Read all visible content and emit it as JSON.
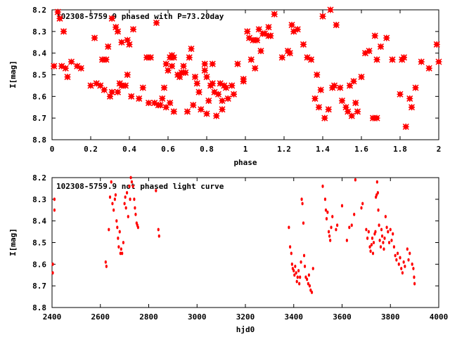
{
  "colors": {
    "points": "#ff0000",
    "axes": "#000000",
    "background": "#ffffff"
  },
  "chart_data": [
    {
      "type": "scatter",
      "title": "102308-5759.9 phased with P=73.20day",
      "xlabel": "phase",
      "ylabel": "I[mag]",
      "xlim": [
        0,
        2
      ],
      "ylim": [
        8.2,
        8.8
      ],
      "y_inverted": true,
      "marker": "star",
      "xticks": [
        "0",
        "0.2",
        "0.4",
        "0.6",
        "0.8",
        "1",
        "1.2",
        "1.4",
        "1.6",
        "1.8",
        "2"
      ],
      "yticks": [
        "8.2",
        "8.3",
        "8.4",
        "8.5",
        "8.6",
        "8.7",
        "8.8"
      ],
      "points": [
        [
          0.01,
          8.46
        ],
        [
          0.03,
          8.21
        ],
        [
          0.04,
          8.24
        ],
        [
          0.05,
          8.46
        ],
        [
          0.06,
          8.3
        ],
        [
          0.07,
          8.47
        ],
        [
          0.08,
          8.51
        ],
        [
          0.1,
          8.44
        ],
        [
          0.13,
          8.46
        ],
        [
          0.15,
          8.47
        ],
        [
          0.2,
          8.55
        ],
        [
          0.22,
          8.33
        ],
        [
          0.23,
          8.54
        ],
        [
          0.25,
          8.55
        ],
        [
          0.26,
          8.43
        ],
        [
          0.27,
          8.57
        ],
        [
          0.28,
          8.43
        ],
        [
          0.29,
          8.37
        ],
        [
          0.3,
          8.6
        ],
        [
          0.31,
          8.58
        ],
        [
          0.31,
          8.24
        ],
        [
          0.33,
          8.28
        ],
        [
          0.34,
          8.3
        ],
        [
          0.34,
          8.58
        ],
        [
          0.35,
          8.54
        ],
        [
          0.36,
          8.55
        ],
        [
          0.36,
          8.35
        ],
        [
          0.38,
          8.55
        ],
        [
          0.39,
          8.34
        ],
        [
          0.39,
          8.5
        ],
        [
          0.4,
          8.36
        ],
        [
          0.41,
          8.6
        ],
        [
          0.42,
          8.29
        ],
        [
          0.45,
          8.61
        ],
        [
          0.47,
          8.56
        ],
        [
          0.49,
          8.42
        ],
        [
          0.5,
          8.63
        ],
        [
          0.51,
          8.42
        ],
        [
          0.53,
          8.63
        ],
        [
          0.54,
          8.26
        ],
        [
          0.55,
          8.64
        ],
        [
          0.56,
          8.64
        ],
        [
          0.57,
          8.61
        ],
        [
          0.58,
          8.56
        ],
        [
          0.59,
          8.65
        ],
        [
          0.59,
          8.45
        ],
        [
          0.6,
          8.48
        ],
        [
          0.61,
          8.42
        ],
        [
          0.61,
          8.63
        ],
        [
          0.62,
          8.41
        ],
        [
          0.62,
          8.46
        ],
        [
          0.63,
          8.42
        ],
        [
          0.63,
          8.67
        ],
        [
          0.65,
          8.5
        ],
        [
          0.66,
          8.51
        ],
        [
          0.67,
          8.49
        ],
        [
          0.68,
          8.46
        ],
        [
          0.69,
          8.49
        ],
        [
          0.7,
          8.67
        ],
        [
          0.71,
          8.42
        ],
        [
          0.72,
          8.38
        ],
        [
          0.73,
          8.64
        ],
        [
          0.74,
          8.51
        ],
        [
          0.75,
          8.54
        ],
        [
          0.76,
          8.58
        ],
        [
          0.77,
          8.66
        ],
        [
          0.79,
          8.45
        ],
        [
          0.79,
          8.48
        ],
        [
          0.8,
          8.68
        ],
        [
          0.8,
          8.51
        ],
        [
          0.81,
          8.62
        ],
        [
          0.82,
          8.55
        ],
        [
          0.83,
          8.54
        ],
        [
          0.83,
          8.45
        ],
        [
          0.84,
          8.58
        ],
        [
          0.85,
          8.69
        ],
        [
          0.86,
          8.59
        ],
        [
          0.87,
          8.54
        ],
        [
          0.88,
          8.66
        ],
        [
          0.88,
          8.62
        ],
        [
          0.89,
          8.55
        ],
        [
          0.9,
          8.56
        ],
        [
          0.91,
          8.61
        ],
        [
          0.93,
          8.55
        ],
        [
          0.94,
          8.59
        ],
        [
          0.96,
          8.45
        ],
        [
          0.99,
          8.52
        ],
        [
          0.99,
          8.53
        ],
        [
          1.01,
          8.3
        ],
        [
          1.02,
          8.33
        ],
        [
          1.03,
          8.43
        ],
        [
          1.04,
          8.34
        ],
        [
          1.05,
          8.47
        ],
        [
          1.06,
          8.34
        ],
        [
          1.07,
          8.29
        ],
        [
          1.08,
          8.39
        ],
        [
          1.09,
          8.31
        ],
        [
          1.1,
          8.31
        ],
        [
          1.12,
          8.32
        ],
        [
          1.12,
          8.28
        ],
        [
          1.13,
          8.32
        ],
        [
          1.15,
          8.22
        ],
        [
          1.19,
          8.42
        ],
        [
          1.22,
          8.39
        ],
        [
          1.23,
          8.4
        ],
        [
          1.24,
          8.27
        ],
        [
          1.25,
          8.3
        ],
        [
          1.27,
          8.29
        ],
        [
          1.3,
          8.36
        ],
        [
          1.32,
          8.42
        ],
        [
          1.34,
          8.43
        ],
        [
          1.36,
          8.61
        ],
        [
          1.37,
          8.5
        ],
        [
          1.38,
          8.65
        ],
        [
          1.39,
          8.57
        ],
        [
          1.4,
          8.23
        ],
        [
          1.41,
          8.7
        ],
        [
          1.43,
          8.66
        ],
        [
          1.44,
          8.2
        ],
        [
          1.45,
          8.56
        ],
        [
          1.46,
          8.55
        ],
        [
          1.47,
          8.27
        ],
        [
          1.49,
          8.56
        ],
        [
          1.5,
          8.62
        ],
        [
          1.52,
          8.65
        ],
        [
          1.53,
          8.67
        ],
        [
          1.54,
          8.55
        ],
        [
          1.55,
          8.69
        ],
        [
          1.56,
          8.53
        ],
        [
          1.57,
          8.63
        ],
        [
          1.58,
          8.67
        ],
        [
          1.6,
          8.51
        ],
        [
          1.62,
          8.4
        ],
        [
          1.64,
          8.39
        ],
        [
          1.66,
          8.7
        ],
        [
          1.67,
          8.32
        ],
        [
          1.68,
          8.7
        ],
        [
          1.68,
          8.43
        ],
        [
          1.7,
          8.37
        ],
        [
          1.73,
          8.33
        ],
        [
          1.76,
          8.43
        ],
        [
          1.8,
          8.59
        ],
        [
          1.81,
          8.43
        ],
        [
          1.82,
          8.42
        ],
        [
          1.83,
          8.74
        ],
        [
          1.85,
          8.61
        ],
        [
          1.86,
          8.65
        ],
        [
          1.88,
          8.56
        ],
        [
          1.91,
          8.44
        ],
        [
          1.95,
          8.47
        ],
        [
          1.99,
          8.36
        ],
        [
          2.0,
          8.44
        ]
      ]
    },
    {
      "type": "scatter",
      "title": "102308-5759.9 not phased light curve",
      "xlabel": "hjd0",
      "ylabel": "I[mag]",
      "xlim": [
        2400,
        4000
      ],
      "ylim": [
        8.2,
        8.8
      ],
      "y_inverted": true,
      "marker": "dot",
      "xticks": [
        "2400",
        "2600",
        "2800",
        "3000",
        "3200",
        "3400",
        "3600",
        "3800",
        "4000"
      ],
      "yticks": [
        "8.2",
        "8.3",
        "8.4",
        "8.5",
        "8.6",
        "8.7",
        "8.8"
      ],
      "points": [
        [
          2403,
          8.6
        ],
        [
          2403,
          8.64
        ],
        [
          2410,
          8.3
        ],
        [
          2410,
          8.35
        ],
        [
          2622,
          8.59
        ],
        [
          2625,
          8.61
        ],
        [
          2635,
          8.44
        ],
        [
          2640,
          8.29
        ],
        [
          2645,
          8.22
        ],
        [
          2650,
          8.32
        ],
        [
          2655,
          8.35
        ],
        [
          2660,
          8.3
        ],
        [
          2663,
          8.28
        ],
        [
          2667,
          8.4
        ],
        [
          2670,
          8.43
        ],
        [
          2673,
          8.48
        ],
        [
          2676,
          8.52
        ],
        [
          2680,
          8.45
        ],
        [
          2683,
          8.55
        ],
        [
          2686,
          8.53
        ],
        [
          2690,
          8.55
        ],
        [
          2695,
          8.5
        ],
        [
          2700,
          8.32
        ],
        [
          2703,
          8.29
        ],
        [
          2706,
          8.34
        ],
        [
          2710,
          8.27
        ],
        [
          2715,
          8.38
        ],
        [
          2720,
          8.24
        ],
        [
          2723,
          8.3
        ],
        [
          2726,
          8.2
        ],
        [
          2730,
          8.22
        ],
        [
          2735,
          8.24
        ],
        [
          2740,
          8.3
        ],
        [
          2743,
          8.34
        ],
        [
          2746,
          8.37
        ],
        [
          2750,
          8.41
        ],
        [
          2753,
          8.42
        ],
        [
          2756,
          8.43
        ],
        [
          2830,
          8.26
        ],
        [
          2840,
          8.44
        ],
        [
          2843,
          8.47
        ],
        [
          3380,
          8.43
        ],
        [
          3385,
          8.52
        ],
        [
          3390,
          8.55
        ],
        [
          3393,
          8.6
        ],
        [
          3396,
          8.62
        ],
        [
          3400,
          8.63
        ],
        [
          3403,
          8.65
        ],
        [
          3406,
          8.61
        ],
        [
          3410,
          8.64
        ],
        [
          3413,
          8.68
        ],
        [
          3416,
          8.66
        ],
        [
          3420,
          8.63
        ],
        [
          3423,
          8.69
        ],
        [
          3426,
          8.66
        ],
        [
          3430,
          8.59
        ],
        [
          3433,
          8.3
        ],
        [
          3436,
          8.32
        ],
        [
          3440,
          8.41
        ],
        [
          3443,
          8.56
        ],
        [
          3446,
          8.61
        ],
        [
          3450,
          8.66
        ],
        [
          3455,
          8.67
        ],
        [
          3460,
          8.69
        ],
        [
          3463,
          8.65
        ],
        [
          3466,
          8.7
        ],
        [
          3470,
          8.72
        ],
        [
          3475,
          8.73
        ],
        [
          3480,
          8.62
        ],
        [
          3520,
          8.24
        ],
        [
          3530,
          8.3
        ],
        [
          3533,
          8.35
        ],
        [
          3536,
          8.39
        ],
        [
          3540,
          8.36
        ],
        [
          3545,
          8.45
        ],
        [
          3548,
          8.47
        ],
        [
          3551,
          8.49
        ],
        [
          3555,
          8.43
        ],
        [
          3560,
          8.38
        ],
        [
          3575,
          8.44
        ],
        [
          3580,
          8.42
        ],
        [
          3600,
          8.33
        ],
        [
          3620,
          8.49
        ],
        [
          3630,
          8.43
        ],
        [
          3640,
          8.42
        ],
        [
          3650,
          8.37
        ],
        [
          3655,
          8.21
        ],
        [
          3680,
          8.34
        ],
        [
          3685,
          8.32
        ],
        [
          3700,
          8.44
        ],
        [
          3705,
          8.48
        ],
        [
          3710,
          8.45
        ],
        [
          3715,
          8.52
        ],
        [
          3718,
          8.54
        ],
        [
          3722,
          8.51
        ],
        [
          3725,
          8.48
        ],
        [
          3728,
          8.55
        ],
        [
          3731,
          8.5
        ],
        [
          3735,
          8.46
        ],
        [
          3738,
          8.45
        ],
        [
          3740,
          8.29
        ],
        [
          3743,
          8.28
        ],
        [
          3745,
          8.22
        ],
        [
          3748,
          8.27
        ],
        [
          3750,
          8.35
        ],
        [
          3753,
          8.42
        ],
        [
          3756,
          8.49
        ],
        [
          3760,
          8.52
        ],
        [
          3763,
          8.44
        ],
        [
          3766,
          8.47
        ],
        [
          3770,
          8.5
        ],
        [
          3773,
          8.53
        ],
        [
          3776,
          8.48
        ],
        [
          3780,
          8.38
        ],
        [
          3785,
          8.43
        ],
        [
          3790,
          8.45
        ],
        [
          3795,
          8.5
        ],
        [
          3800,
          8.44
        ],
        [
          3805,
          8.49
        ],
        [
          3810,
          8.46
        ],
        [
          3815,
          8.52
        ],
        [
          3820,
          8.56
        ],
        [
          3825,
          8.58
        ],
        [
          3830,
          8.55
        ],
        [
          3835,
          8.6
        ],
        [
          3840,
          8.57
        ],
        [
          3845,
          8.62
        ],
        [
          3850,
          8.64
        ],
        [
          3855,
          8.59
        ],
        [
          3860,
          8.61
        ],
        [
          3870,
          8.53
        ],
        [
          3875,
          8.58
        ],
        [
          3880,
          8.55
        ],
        [
          3890,
          8.6
        ],
        [
          3895,
          8.62
        ],
        [
          3898,
          8.66
        ],
        [
          3900,
          8.69
        ]
      ]
    }
  ]
}
